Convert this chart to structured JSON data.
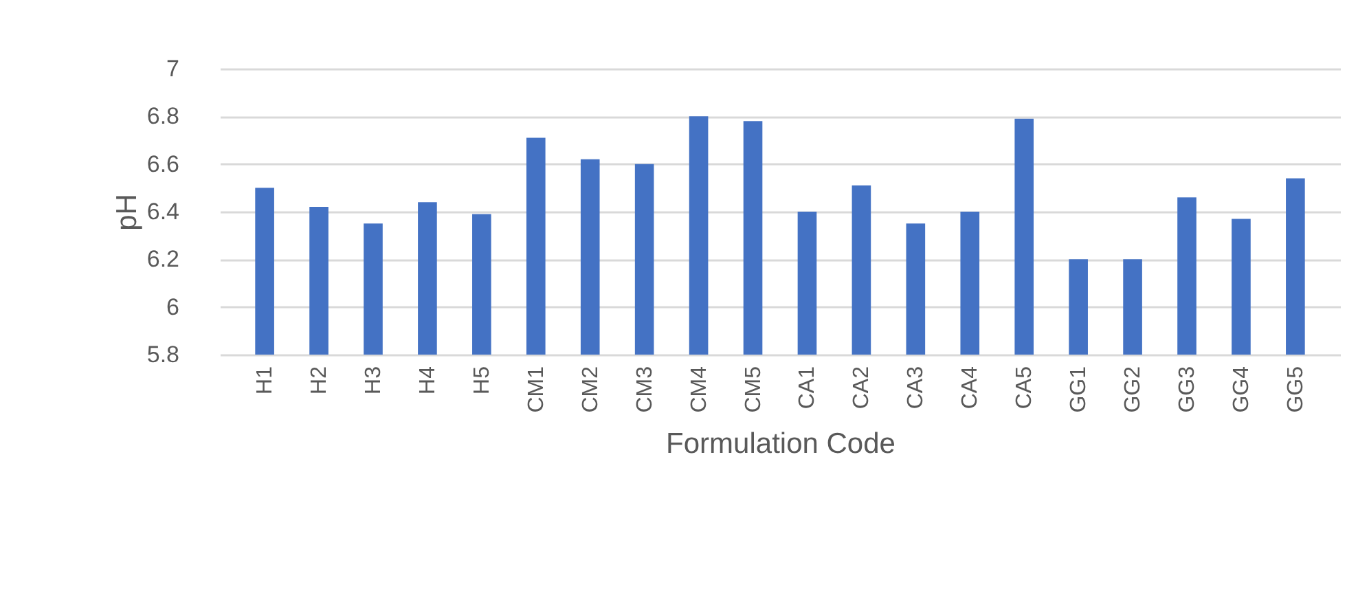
{
  "chart_data": {
    "type": "bar",
    "xlabel": "Formulation Code",
    "ylabel": "pH",
    "categories": [
      "H1",
      "H2",
      "H3",
      "H4",
      "H5",
      "CM1",
      "CM2",
      "CM3",
      "CM4",
      "CM5",
      "CA1",
      "CA2",
      "CA3",
      "CA4",
      "CA5",
      "GG1",
      "GG2",
      "GG3",
      "GG4",
      "GG5"
    ],
    "values": [
      6.5,
      6.42,
      6.35,
      6.44,
      6.39,
      6.71,
      6.62,
      6.6,
      6.8,
      6.78,
      6.4,
      6.51,
      6.35,
      6.4,
      6.79,
      6.2,
      6.2,
      6.46,
      6.37,
      6.54
    ],
    "color": "#4472c4",
    "ylim": [
      5.8,
      7
    ],
    "yticks": [
      5.8,
      6,
      6.2,
      6.4,
      6.6,
      6.8,
      7
    ],
    "grid": true
  }
}
